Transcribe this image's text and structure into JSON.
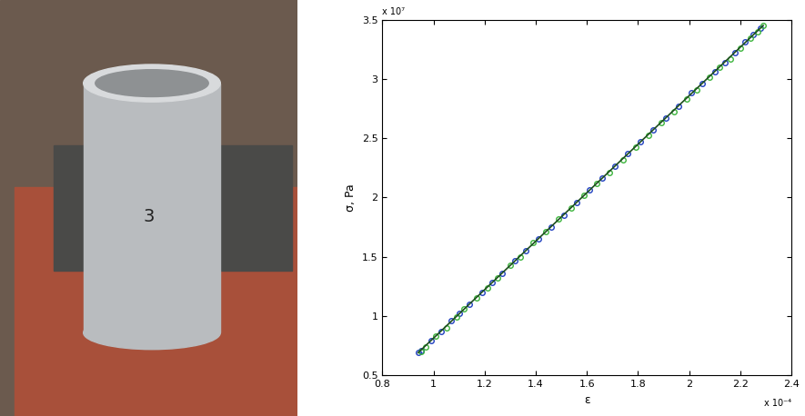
{
  "chart_data": {
    "type": "scatter",
    "x_label": "ε",
    "y_label": "σ, Pa",
    "x_multiplier": "x 10⁻⁴",
    "y_multiplier": "x 10⁷",
    "xlim": [
      0.8,
      2.4
    ],
    "xticks": [
      0.8,
      1,
      1.2,
      1.4,
      1.6,
      1.8,
      2,
      2.2,
      2.4
    ],
    "ylim": [
      0.5,
      3.5
    ],
    "yticks": [
      0.5,
      1,
      1.5,
      2,
      2.5,
      3,
      3.5
    ],
    "grid": false,
    "series": [
      {
        "type": "scatter",
        "color": "#1f3fbf",
        "marker": "circle",
        "x": [
          0.94,
          0.95,
          0.99,
          1.03,
          1.07,
          1.1,
          1.14,
          1.19,
          1.23,
          1.27,
          1.32,
          1.36,
          1.41,
          1.46,
          1.51,
          1.56,
          1.61,
          1.66,
          1.71,
          1.76,
          1.81,
          1.86,
          1.91,
          1.96,
          2.01,
          2.05,
          2.1,
          2.14,
          2.18,
          2.22,
          2.25,
          2.28
        ],
        "values": [
          0.69,
          0.71,
          0.79,
          0.87,
          0.96,
          1.02,
          1.1,
          1.2,
          1.28,
          1.36,
          1.47,
          1.55,
          1.65,
          1.75,
          1.85,
          1.96,
          2.06,
          2.16,
          2.26,
          2.37,
          2.47,
          2.57,
          2.67,
          2.77,
          2.88,
          2.96,
          3.06,
          3.14,
          3.22,
          3.31,
          3.37,
          3.43
        ]
      },
      {
        "type": "scatter",
        "color": "#3cb43c",
        "marker": "circle",
        "x": [
          0.95,
          0.97,
          1.01,
          1.05,
          1.09,
          1.12,
          1.17,
          1.21,
          1.25,
          1.3,
          1.34,
          1.39,
          1.44,
          1.49,
          1.54,
          1.59,
          1.64,
          1.69,
          1.74,
          1.79,
          1.84,
          1.89,
          1.94,
          1.99,
          2.03,
          2.08,
          2.12,
          2.16,
          2.2,
          2.24,
          2.27,
          2.29
        ],
        "values": [
          0.7,
          0.74,
          0.83,
          0.9,
          0.99,
          1.06,
          1.15,
          1.24,
          1.32,
          1.43,
          1.5,
          1.62,
          1.71,
          1.82,
          1.91,
          2.02,
          2.12,
          2.21,
          2.32,
          2.42,
          2.52,
          2.63,
          2.72,
          2.83,
          2.91,
          3.01,
          3.1,
          3.17,
          3.26,
          3.34,
          3.4,
          3.45
        ]
      },
      {
        "type": "line",
        "color": "#1e4d1e",
        "line_style": "solid",
        "x": [
          0.94,
          2.29
        ],
        "values": [
          0.69,
          3.45
        ]
      }
    ]
  },
  "photo": {
    "label": "3"
  }
}
